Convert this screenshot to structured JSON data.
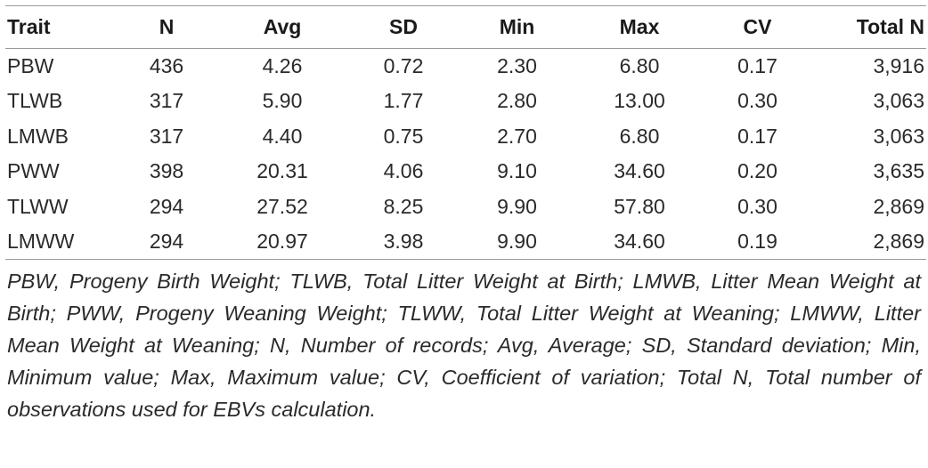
{
  "table": {
    "headers": [
      "Trait",
      "N",
      "Avg",
      "SD",
      "Min",
      "Max",
      "CV",
      "Total N"
    ],
    "rows": [
      [
        "PBW",
        "436",
        "4.26",
        "0.72",
        "2.30",
        "6.80",
        "0.17",
        "3,916"
      ],
      [
        "TLWB",
        "317",
        "5.90",
        "1.77",
        "2.80",
        "13.00",
        "0.30",
        "3,063"
      ],
      [
        "LMWB",
        "317",
        "4.40",
        "0.75",
        "2.70",
        "6.80",
        "0.17",
        "3,063"
      ],
      [
        "PWW",
        "398",
        "20.31",
        "4.06",
        "9.10",
        "34.60",
        "0.20",
        "3,635"
      ],
      [
        "TLWW",
        "294",
        "27.52",
        "8.25",
        "9.90",
        "57.80",
        "0.30",
        "2,869"
      ],
      [
        "LMWW",
        "294",
        "20.97",
        "3.98",
        "9.90",
        "34.60",
        "0.19",
        "2,869"
      ]
    ]
  },
  "footnote": "PBW, Progeny Birth Weight; TLWB, Total Litter Weight at Birth; LMWB, Litter Mean Weight at Birth; PWW, Progeny Weaning Weight; TLWW, Total Litter Weight at Weaning; LMWW, Litter Mean Weight at Weaning; N, Number of records; Avg, Average; SD, Standard deviation; Min, Minimum value; Max, Maximum value; CV, Coefficient of variation; Total N, Total number of observations used for EBVs calculation."
}
